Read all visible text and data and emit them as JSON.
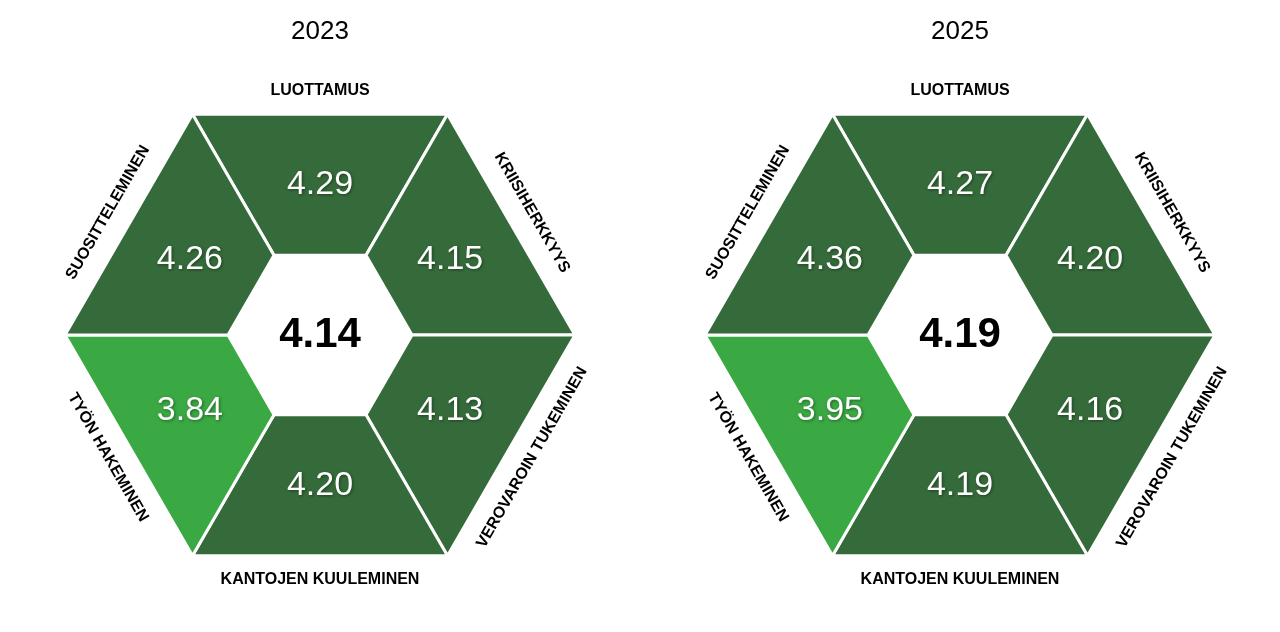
{
  "chart_data": [
    {
      "type": "other",
      "title": "2023",
      "categories": [
        "LUOTTAMUS",
        "KRIISIHERKKYYS",
        "VEROVAROIN TUKEMINEN",
        "KANTOJEN KUULEMINEN",
        "TYÖN HAKEMINEN",
        "SUOSITTELEMINEN"
      ],
      "values": [
        4.29,
        4.15,
        4.13,
        4.2,
        3.84,
        4.26
      ],
      "value_labels": [
        "4.29",
        "4.15",
        "4.13",
        "4.20",
        "3.84",
        "4.26"
      ],
      "colors": [
        "#356b3a",
        "#356b3a",
        "#356b3a",
        "#356b3a",
        "#3aa843",
        "#356b3a"
      ],
      "annotations": [
        "4.14"
      ]
    },
    {
      "type": "other",
      "title": "2025",
      "categories": [
        "LUOTTAMUS",
        "KRIISIHERKKYYS",
        "VEROVAROIN TUKEMINEN",
        "KANTOJEN KUULEMINEN",
        "TYÖN HAKEMINEN",
        "SUOSITTELEMINEN"
      ],
      "values": [
        4.27,
        4.2,
        4.16,
        4.19,
        3.95,
        4.36
      ],
      "value_labels": [
        "4.27",
        "4.20",
        "4.16",
        "4.19",
        "3.95",
        "4.36"
      ],
      "colors": [
        "#356b3a",
        "#356b3a",
        "#356b3a",
        "#356b3a",
        "#3aa843",
        "#356b3a"
      ],
      "annotations": [
        "4.19"
      ]
    }
  ]
}
